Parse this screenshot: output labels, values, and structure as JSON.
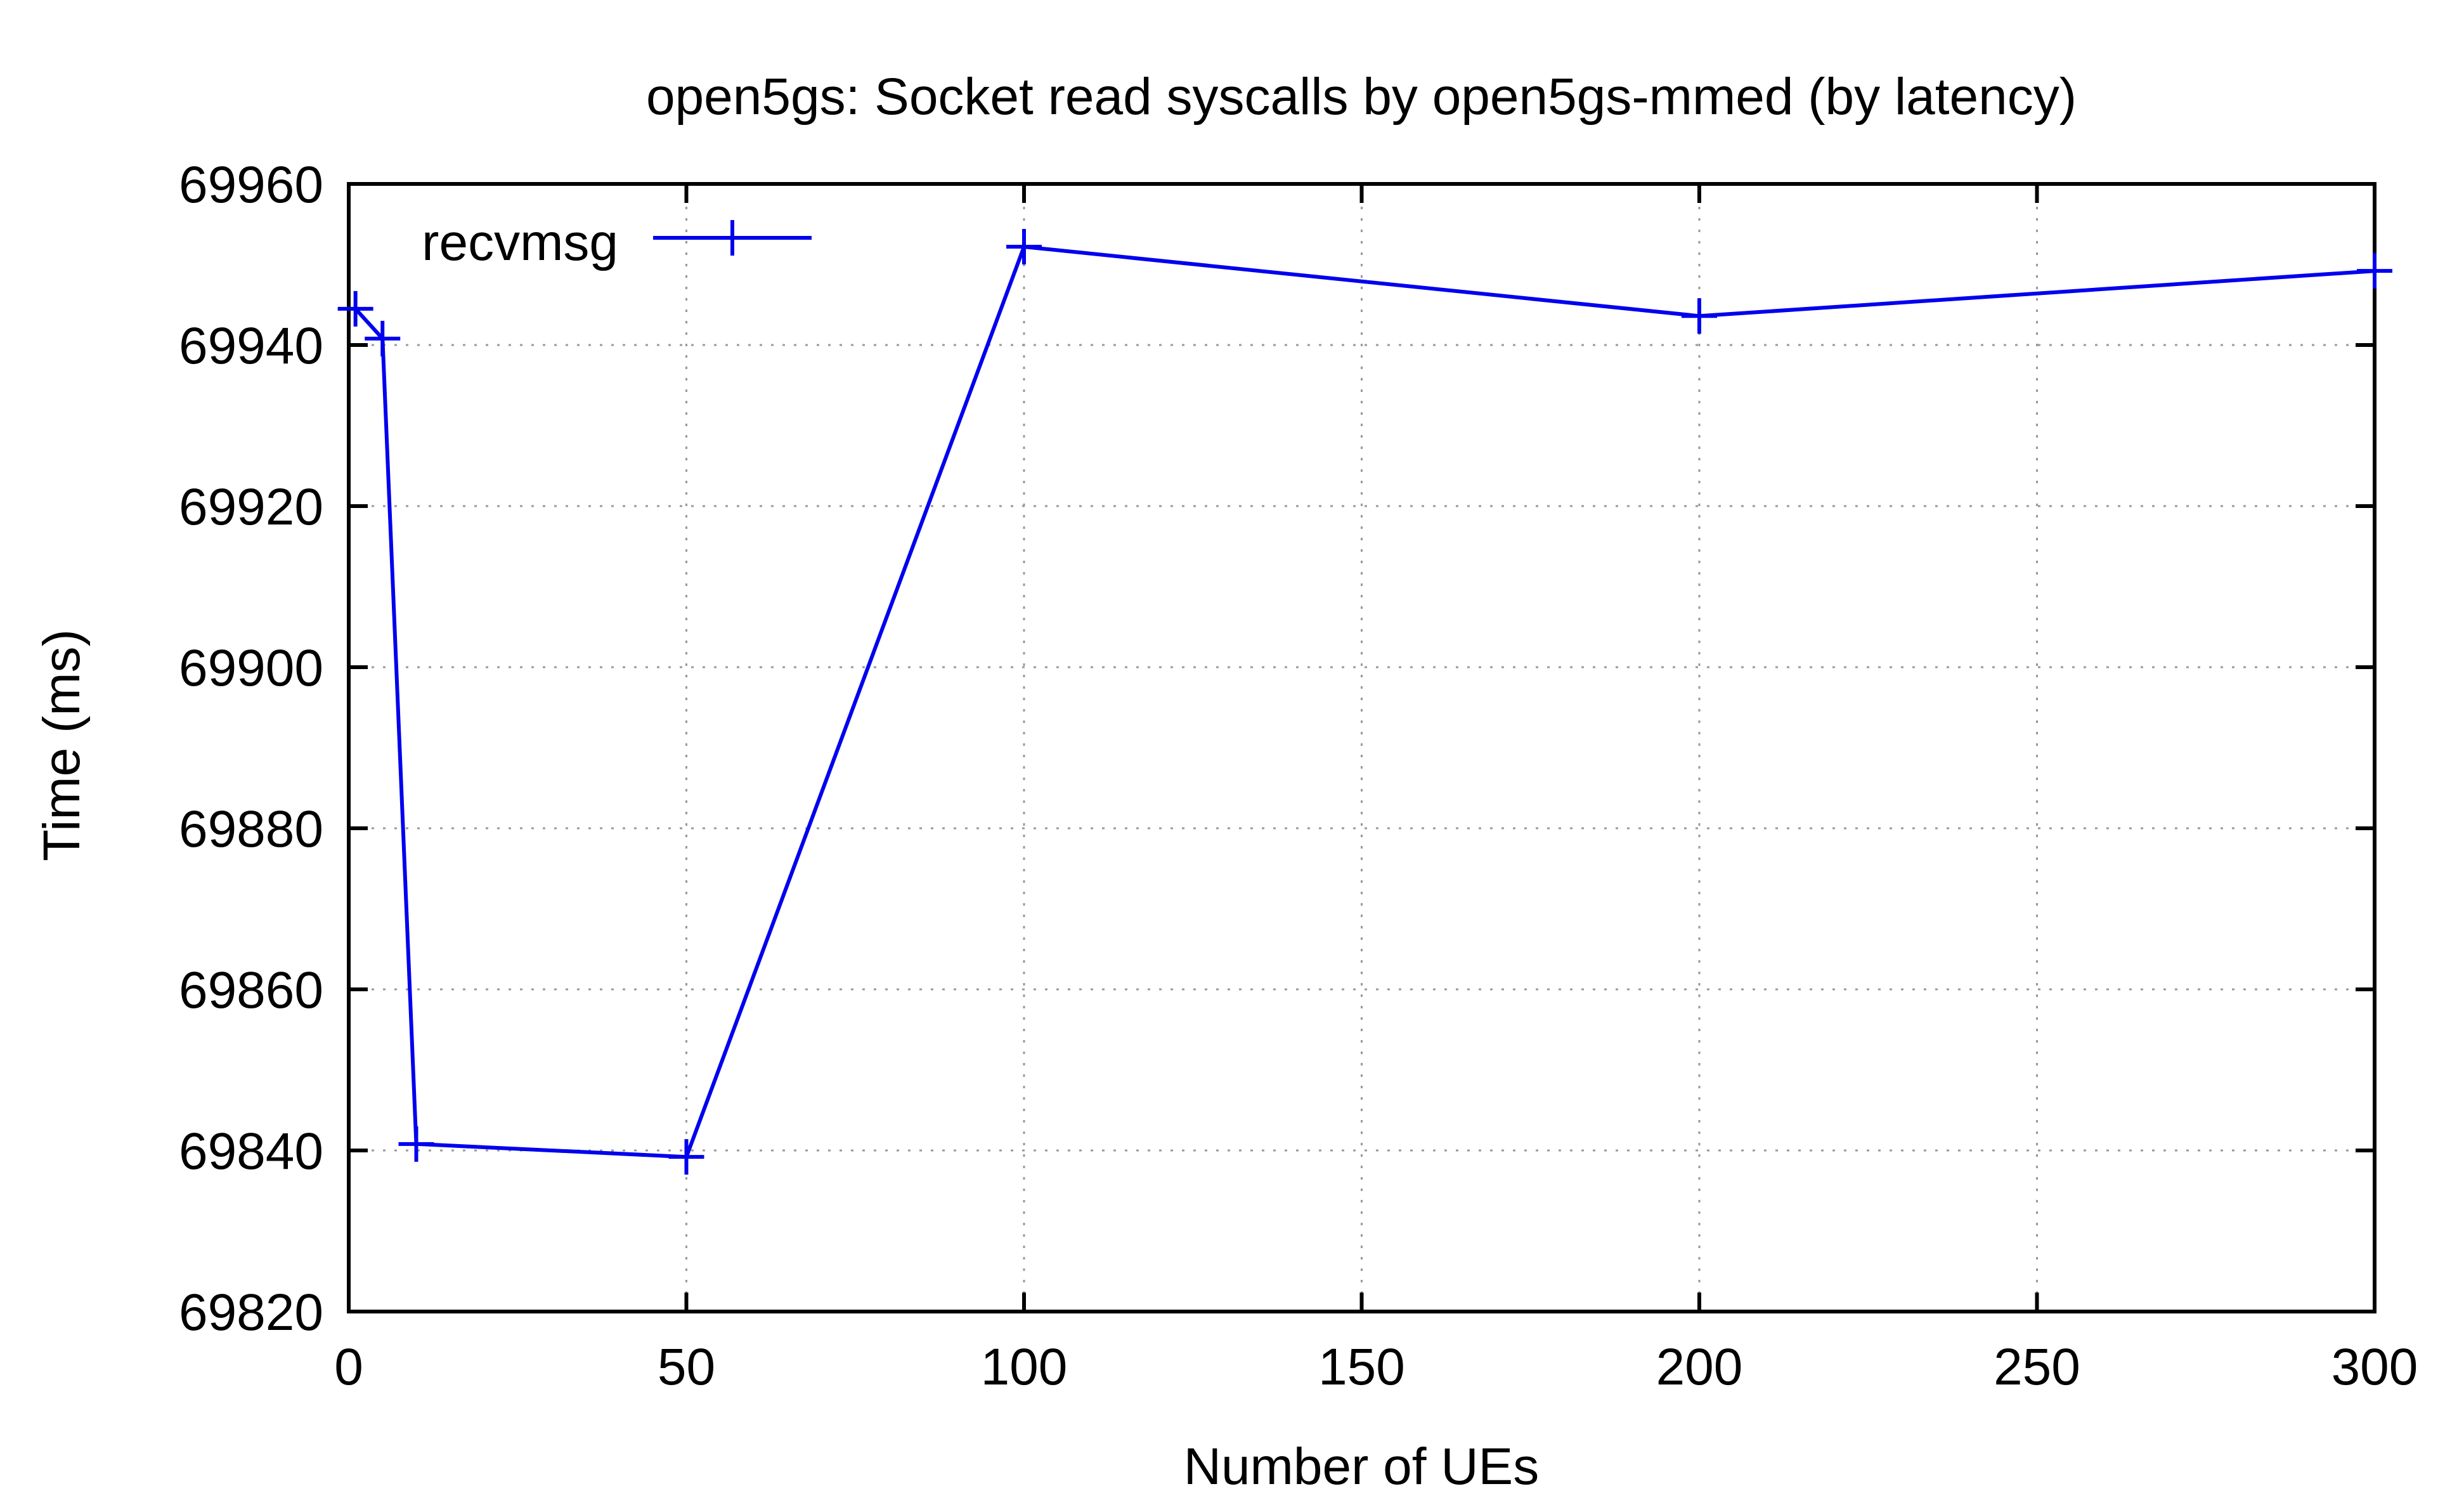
{
  "chart_data": {
    "type": "line",
    "title": "open5gs: Socket read syscalls by open5gs-mmed (by latency)",
    "xlabel": "Number of UEs",
    "ylabel": "Time (ms)",
    "xlim": [
      0,
      300
    ],
    "ylim": [
      69820,
      69960
    ],
    "xticks": [
      0,
      50,
      100,
      150,
      200,
      250,
      300
    ],
    "yticks": [
      69820,
      69840,
      69860,
      69880,
      69900,
      69920,
      69940,
      69960
    ],
    "grid": true,
    "legend_position": "top-left",
    "series": [
      {
        "name": "recvmsg",
        "color": "#0000ee",
        "marker": "plus",
        "x": [
          1,
          5,
          10,
          50,
          100,
          200,
          300
        ],
        "y": [
          69944.5,
          69940.8,
          69840.8,
          69839.2,
          69952.2,
          69943.6,
          69949.2
        ]
      }
    ]
  }
}
